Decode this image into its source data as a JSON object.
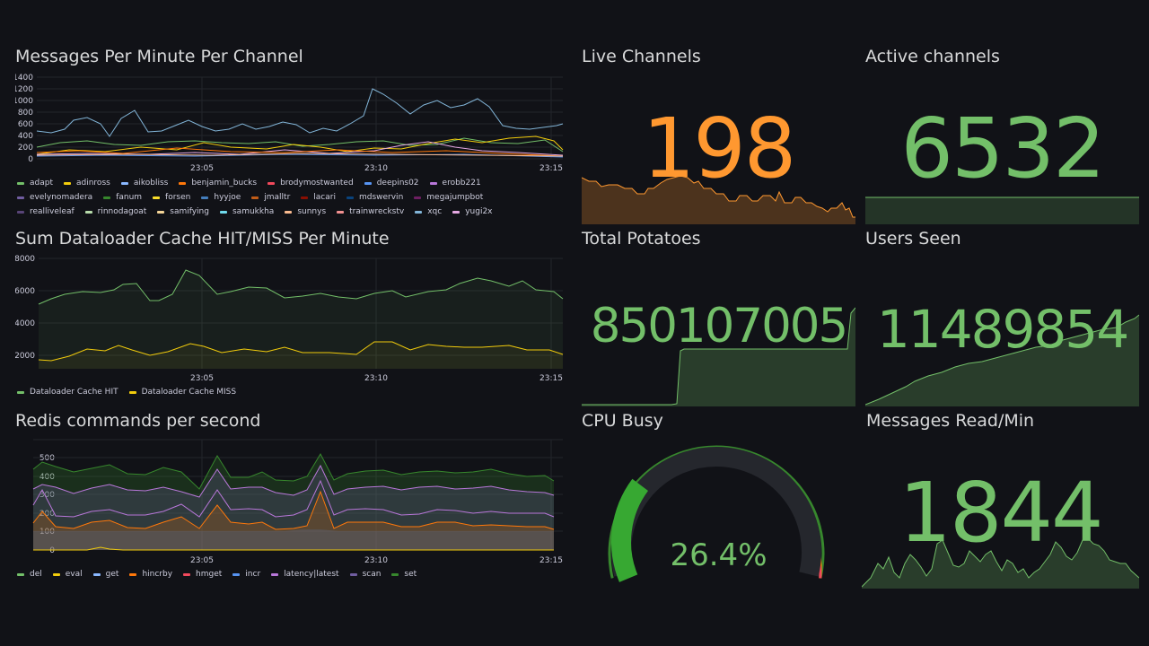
{
  "panels": {
    "messages_per_minute": {
      "title": "Messages Per Minute Per Channel",
      "y_ticks": [
        "1400",
        "1200",
        "1000",
        "800",
        "600",
        "400",
        "200",
        "0"
      ],
      "x_ticks": [
        "23:05",
        "23:10",
        "23:15"
      ],
      "legend": [
        {
          "name": "adapt",
          "color": "#73bf69"
        },
        {
          "name": "adinross",
          "color": "#f2cc0c"
        },
        {
          "name": "aikobliss",
          "color": "#8ab8ff"
        },
        {
          "name": "benjamin_bucks",
          "color": "#ff780a"
        },
        {
          "name": "brodymostwanted",
          "color": "#f2495c"
        },
        {
          "name": "deepins02",
          "color": "#5794f2"
        },
        {
          "name": "erobb221",
          "color": "#b877d9"
        },
        {
          "name": "evelynomadera",
          "color": "#705da0"
        },
        {
          "name": "fanum",
          "color": "#37872d"
        },
        {
          "name": "forsen",
          "color": "#fade2a"
        },
        {
          "name": "hyyjoe",
          "color": "#447ebc"
        },
        {
          "name": "jmalltr",
          "color": "#c15c17"
        },
        {
          "name": "lacari",
          "color": "#890f02"
        },
        {
          "name": "mdswervin",
          "color": "#0a437c"
        },
        {
          "name": "megajumpbot",
          "color": "#6d1f62"
        },
        {
          "name": "realliveleaf",
          "color": "#584477"
        },
        {
          "name": "rinnodagoat",
          "color": "#b7dbab"
        },
        {
          "name": "samifying",
          "color": "#f4d598"
        },
        {
          "name": "samukkha",
          "color": "#70dbed"
        },
        {
          "name": "sunnys",
          "color": "#f9ba8f"
        },
        {
          "name": "trainwreckstv",
          "color": "#f29191"
        },
        {
          "name": "xqc",
          "color": "#82b5d8"
        },
        {
          "name": "yugi2x",
          "color": "#e5a8e2"
        }
      ]
    },
    "dataloader": {
      "title": "Sum Dataloader Cache HIT/MISS Per Minute",
      "y_ticks": [
        "8000",
        "6000",
        "4000",
        "2000"
      ],
      "x_ticks": [
        "23:05",
        "23:10",
        "23:15"
      ],
      "legend": [
        {
          "name": "Dataloader Cache HIT",
          "color": "#73bf69"
        },
        {
          "name": "Dataloader Cache MISS",
          "color": "#f2cc0c"
        }
      ]
    },
    "redis": {
      "title": "Redis commands per second",
      "y_ticks": [
        "500",
        "400",
        "300",
        "200",
        "100",
        "0"
      ],
      "x_ticks": [
        "23:05",
        "23:10",
        "23:15"
      ],
      "legend": [
        {
          "name": "del",
          "color": "#73bf69"
        },
        {
          "name": "eval",
          "color": "#f2cc0c"
        },
        {
          "name": "get",
          "color": "#8ab8ff"
        },
        {
          "name": "hincrby",
          "color": "#ff780a"
        },
        {
          "name": "hmget",
          "color": "#f2495c"
        },
        {
          "name": "incr",
          "color": "#5794f2"
        },
        {
          "name": "latency|latest",
          "color": "#b877d9"
        },
        {
          "name": "scan",
          "color": "#705da0"
        },
        {
          "name": "set",
          "color": "#37872d"
        }
      ]
    },
    "live_channels": {
      "title": "Live Channels",
      "value": "198",
      "color": "#ff9830"
    },
    "active_channels": {
      "title": "Active channels",
      "value": "6532",
      "color": "#73bf69"
    },
    "total_potatoes": {
      "title": "Total Potatoes",
      "value": "850107005",
      "color": "#73bf69"
    },
    "users_seen": {
      "title": "Users Seen",
      "value": "11489854",
      "color": "#73bf69"
    },
    "cpu_busy": {
      "title": "CPU Busy",
      "value": "26.4%",
      "percent": 26.4,
      "color": "#73bf69"
    },
    "messages_read": {
      "title": "Messages Read/Min",
      "value": "1844",
      "color": "#73bf69"
    }
  }
}
